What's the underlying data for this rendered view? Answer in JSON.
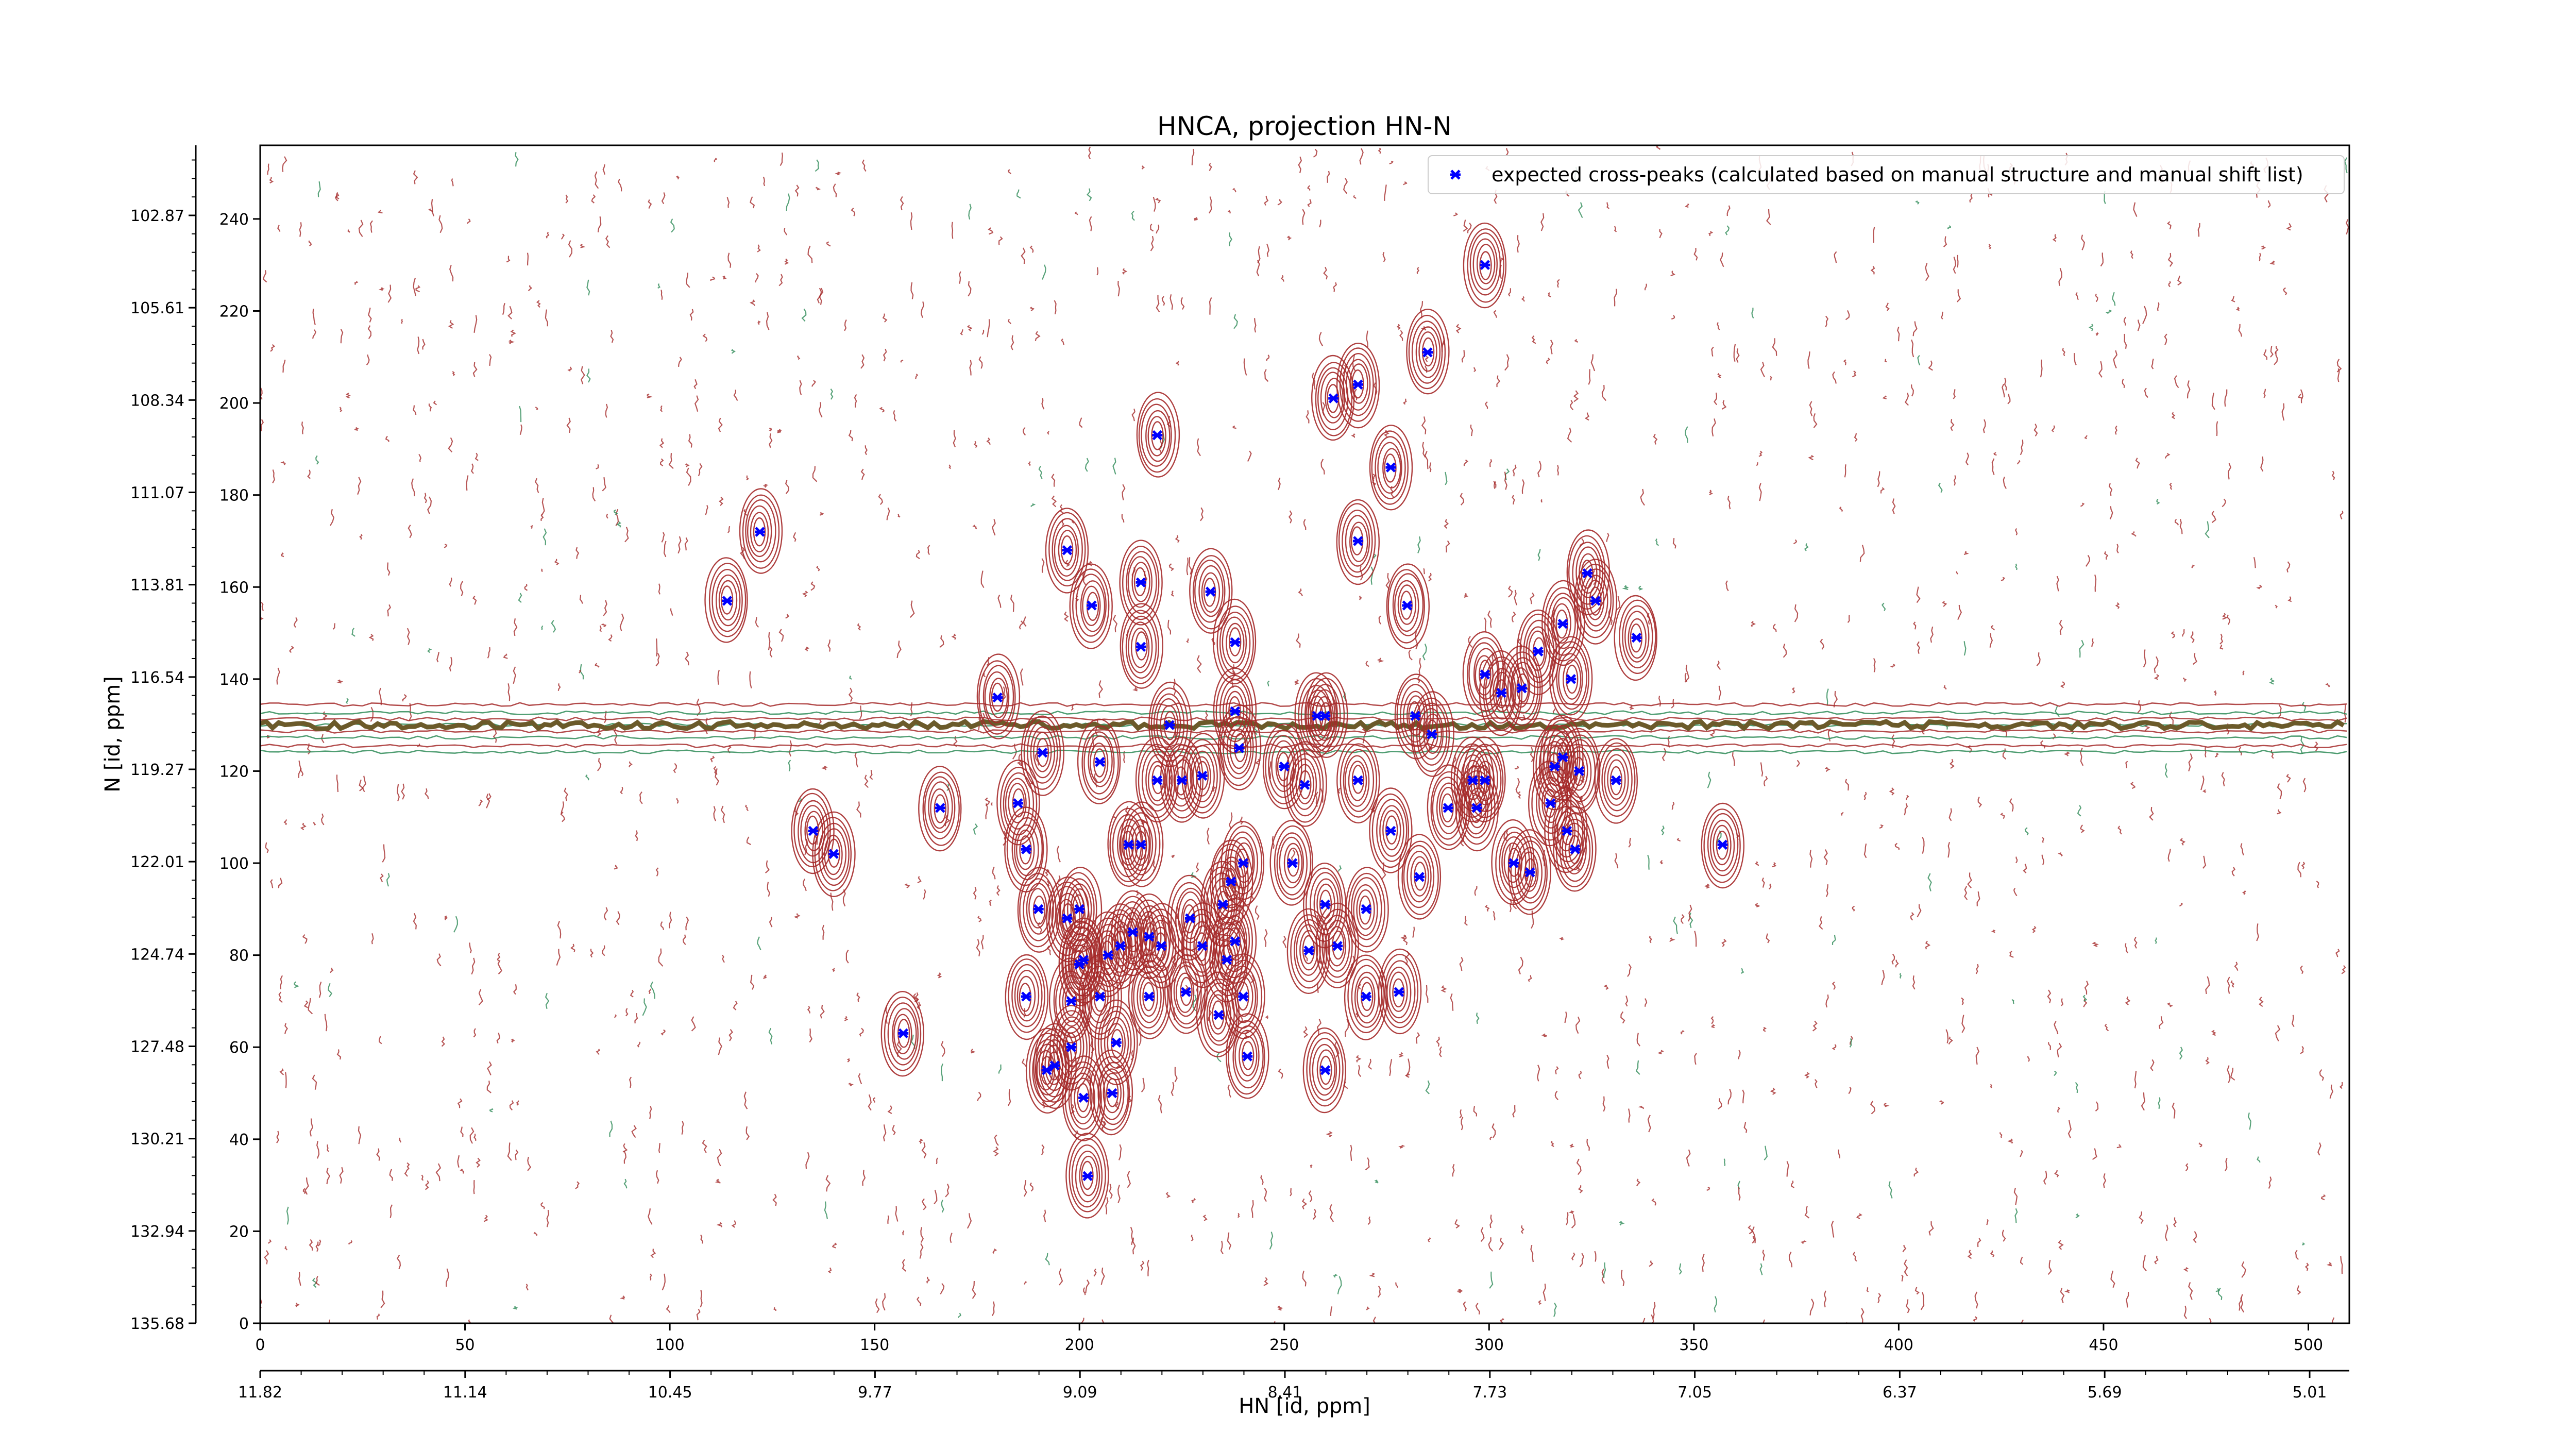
{
  "chart_data": {
    "type": "scatter",
    "title": "HNCA, projection HN-N",
    "xlabel": "HN [id, ppm]",
    "ylabel": "N [id, ppm]",
    "xlim": [
      0,
      510
    ],
    "ylim": [
      0,
      256
    ],
    "x_index_ticks": [
      "0",
      "50",
      "100",
      "150",
      "200",
      "250",
      "300",
      "350",
      "400",
      "450",
      "500"
    ],
    "x_ppm_ticks": [
      "11.82",
      "11.14",
      "10.45",
      "9.77",
      "9.09",
      "8.41",
      "7.73",
      "7.05",
      "6.37",
      "5.69",
      "5.01"
    ],
    "y_index_ticks": [
      "0",
      "20",
      "40",
      "60",
      "80",
      "100",
      "120",
      "140",
      "160",
      "180",
      "200",
      "220",
      "240"
    ],
    "y_ppm_ticks": [
      "135.68",
      "132.94",
      "130.21",
      "127.48",
      "124.74",
      "122.01",
      "119.27",
      "116.54",
      "113.81",
      "111.07",
      "108.34",
      "105.61",
      "102.87"
    ],
    "legend": {
      "placement": "top-right",
      "entries": [
        "expected cross-peaks (calculated based on manual structure and manual shift list)"
      ]
    },
    "colors": {
      "positive_contours": "#a52a2a",
      "negative_contours": "#2e8b57",
      "peaks": "#0000ff",
      "water_band": "#6b5a2a"
    },
    "series": [
      {
        "name": "expected cross-peaks (calculated based on manual structure and manual shift list)",
        "x": [
          299,
          122,
          114,
          219,
          262,
          268,
          285,
          276,
          197,
          215,
          232,
          203,
          268,
          280,
          238,
          215,
          324,
          326,
          318,
          336,
          320,
          308,
          299,
          303,
          312,
          180,
          222,
          238,
          239,
          258,
          260,
          191,
          205,
          219,
          225,
          230,
          250,
          255,
          268,
          282,
          286,
          290,
          296,
          299,
          316,
          318,
          322,
          331,
          135,
          140,
          166,
          185,
          187,
          200,
          212,
          215,
          227,
          235,
          237,
          240,
          252,
          270,
          276,
          283,
          297,
          306,
          310,
          315,
          319,
          321,
          357,
          190,
          197,
          200,
          201,
          207,
          210,
          213,
          217,
          220,
          226,
          230,
          236,
          238,
          260,
          256,
          263,
          270,
          278,
          187,
          198,
          205,
          209,
          217,
          234,
          240,
          157,
          192,
          194,
          198,
          208,
          241,
          260,
          201,
          202
        ],
        "y": [
          230,
          172,
          157,
          193,
          201,
          204,
          211,
          186,
          168,
          161,
          159,
          156,
          170,
          156,
          148,
          147,
          163,
          157,
          152,
          149,
          140,
          138,
          141,
          137,
          146,
          136,
          130,
          133,
          125,
          132,
          132,
          124,
          122,
          118,
          118,
          119,
          121,
          117,
          118,
          132,
          128,
          112,
          118,
          118,
          121,
          123,
          120,
          118,
          107,
          102,
          112,
          113,
          103,
          90,
          104,
          104,
          88,
          91,
          96,
          100,
          100,
          90,
          107,
          97,
          112,
          100,
          98,
          113,
          107,
          103,
          104,
          90,
          88,
          78,
          79,
          80,
          82,
          85,
          84,
          82,
          72,
          82,
          79,
          83,
          91,
          81,
          82,
          71,
          72,
          71,
          70,
          71,
          61,
          71,
          67,
          71,
          63,
          55,
          56,
          60,
          50,
          58,
          55,
          49,
          32
        ]
      }
    ]
  }
}
